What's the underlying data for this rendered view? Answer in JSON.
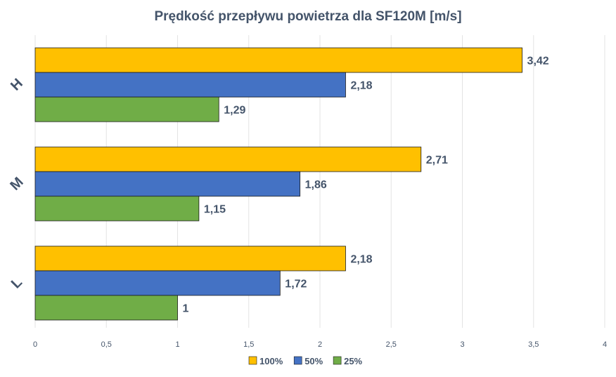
{
  "chart_data": {
    "type": "bar",
    "orientation": "horizontal",
    "title": "Prędkość przepływu powietrza dla SF120M [m/s]",
    "xlabel": "",
    "ylabel": "",
    "categories": [
      "H",
      "M",
      "L"
    ],
    "series": [
      {
        "name": "100%",
        "values": [
          3.42,
          2.71,
          2.18
        ],
        "color": "#ffc000",
        "data_labels": [
          "3,42",
          "2,71",
          "2,18"
        ]
      },
      {
        "name": "50%",
        "values": [
          2.18,
          1.86,
          1.72
        ],
        "color": "#4472c4",
        "data_labels": [
          "2,18",
          "1,86",
          "1,72"
        ]
      },
      {
        "name": "25%",
        "values": [
          1.29,
          1.15,
          1.0
        ],
        "color": "#70ad47",
        "data_labels": [
          "1,29",
          "1,15",
          "1"
        ]
      }
    ],
    "xlim": [
      0,
      4
    ],
    "x_ticks": [
      0,
      0.5,
      1,
      1.5,
      2,
      2.5,
      3,
      3.5,
      4
    ],
    "x_tick_labels": [
      "0",
      "0,5",
      "1",
      "1,5",
      "2",
      "2,5",
      "3",
      "3,5",
      "4"
    ],
    "grid": true,
    "legend_position": "bottom"
  }
}
